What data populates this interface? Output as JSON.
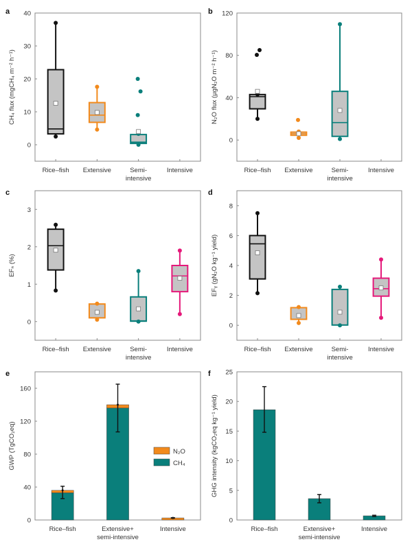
{
  "colors": {
    "rice_fish": "#111111",
    "extensive": "#f28a1c",
    "semi_intensive": "#0a7f7b",
    "intensive": "#e5197a",
    "box_fill": "#c4c4c4",
    "n2o": "#f28a1c",
    "ch4": "#0a7f7b"
  },
  "chart_data": [
    {
      "id": "a",
      "panel_label": "a",
      "type": "box",
      "ylabel": "CH₄ flux (mgCH₄ m⁻² h⁻¹)",
      "ylim": [
        -5,
        40
      ],
      "yticks": [
        0,
        10,
        20,
        30,
        40
      ],
      "categories": [
        "Rice–fish",
        "Extensive",
        "Semi-\nintensive",
        "Intensive"
      ],
      "groups": [
        {
          "name": "Rice–fish",
          "color_key": "rice_fish",
          "min": 2.5,
          "q1": 3.3,
          "median": 4.8,
          "q3": 22.8,
          "max": 37,
          "mean": 12.6,
          "outliers": []
        },
        {
          "name": "Extensive",
          "color_key": "extensive",
          "min": 4.6,
          "q1": 6.8,
          "median": 9.0,
          "q3": 12.8,
          "max": 17.6,
          "mean": 9.8,
          "outliers": []
        },
        {
          "name": "Semi-intensive",
          "color_key": "semi_intensive",
          "min": 0.0,
          "q1": 0.4,
          "median": 0.8,
          "q3": 3.1,
          "max": 3.3,
          "mean": 4.0,
          "outliers": [
            9.0,
            16.2,
            20.0
          ]
        },
        {
          "name": "Intensive",
          "color_key": "intensive",
          "empty": true
        }
      ]
    },
    {
      "id": "b",
      "panel_label": "b",
      "type": "box",
      "ylabel": "N₂O flux (µgN₂O m⁻² h⁻¹)",
      "ylim": [
        -20,
        120
      ],
      "yticks": [
        0,
        40,
        80,
        120
      ],
      "categories": [
        "Rice–fish",
        "Extensive",
        "Semi-\nintensive",
        "Intensive"
      ],
      "groups": [
        {
          "name": "Rice–fish",
          "color_key": "rice_fish",
          "min": 20,
          "q1": 29.5,
          "median": 41,
          "q3": 43,
          "max": 43,
          "mean": 46,
          "outliers": [
            80.5,
            85
          ]
        },
        {
          "name": "Extensive",
          "color_key": "extensive",
          "min": 2,
          "q1": 4.5,
          "median": 6,
          "q3": 7.5,
          "max": 8,
          "mean": 6,
          "outliers": [
            19
          ]
        },
        {
          "name": "Semi-intensive",
          "color_key": "semi_intensive",
          "min": 1,
          "q1": 3.5,
          "median": 16.5,
          "q3": 46,
          "max": 109.5,
          "mean": 28,
          "outliers": []
        },
        {
          "name": "Intensive",
          "color_key": "intensive",
          "empty": true
        }
      ]
    },
    {
      "id": "c",
      "panel_label": "c",
      "type": "box",
      "ylabel": "EFₙ (%)",
      "ylim": [
        -0.5,
        3.5
      ],
      "yticks": [
        0,
        1,
        2,
        3
      ],
      "categories": [
        "Rice–fish",
        "Extensive",
        "Semi-\nintensive",
        "Intensive"
      ],
      "groups": [
        {
          "name": "Rice–fish",
          "color_key": "rice_fish",
          "min": 0.83,
          "q1": 1.38,
          "median": 2.03,
          "q3": 2.47,
          "max": 2.59,
          "mean": 1.91,
          "outliers": []
        },
        {
          "name": "Extensive",
          "color_key": "extensive",
          "min": 0.05,
          "q1": 0.1,
          "median": 0.1,
          "q3": 0.47,
          "max": 0.48,
          "mean": 0.25,
          "outliers": []
        },
        {
          "name": "Semi-intensive",
          "color_key": "semi_intensive",
          "min": 0.0,
          "q1": 0.01,
          "median": 0.02,
          "q3": 0.66,
          "max": 1.35,
          "mean": 0.34,
          "outliers": []
        },
        {
          "name": "Intensive",
          "color_key": "intensive",
          "min": 0.2,
          "q1": 0.8,
          "median": 1.22,
          "q3": 1.5,
          "max": 1.9,
          "mean": 1.16,
          "outliers": []
        }
      ]
    },
    {
      "id": "d",
      "panel_label": "d",
      "type": "box",
      "ylabel": "EFᵧ (gN₂O kg⁻¹ yield)",
      "ylim": [
        -1,
        9
      ],
      "yticks": [
        0,
        2,
        4,
        6,
        8
      ],
      "categories": [
        "Rice–fish",
        "Extensive",
        "Semi-\nintensive",
        "Intensive"
      ],
      "groups": [
        {
          "name": "Rice–fish",
          "color_key": "rice_fish",
          "min": 2.15,
          "q1": 3.1,
          "median": 5.45,
          "q3": 6.0,
          "max": 7.5,
          "mean": 4.85,
          "outliers": []
        },
        {
          "name": "Extensive",
          "color_key": "extensive",
          "min": 0.15,
          "q1": 0.4,
          "median": 0.4,
          "q3": 1.18,
          "max": 1.22,
          "mean": 0.65,
          "outliers": []
        },
        {
          "name": "Semi-intensive",
          "color_key": "semi_intensive",
          "min": 0.0,
          "q1": 0.02,
          "median": 0.02,
          "q3": 2.4,
          "max": 2.58,
          "mean": 0.88,
          "outliers": []
        },
        {
          "name": "Intensive",
          "color_key": "intensive",
          "min": 0.5,
          "q1": 1.95,
          "median": 2.45,
          "q3": 3.15,
          "max": 4.4,
          "mean": 2.5,
          "outliers": []
        }
      ]
    },
    {
      "id": "e",
      "panel_label": "e",
      "type": "stacked_bar",
      "ylabel": "GWP (TgCO₂eq)",
      "ylim": [
        0,
        180
      ],
      "yticks": [
        0,
        40,
        80,
        120,
        160
      ],
      "categories": [
        "Rice–fish",
        "Extensive+\nsemi-intensive",
        "Intensive"
      ],
      "series": [
        {
          "name": "CH₄",
          "color_key": "ch4",
          "values": [
            33,
            136,
            0
          ]
        },
        {
          "name": "N₂O",
          "color_key": "n2o",
          "values": [
            3,
            4,
            2.5
          ]
        }
      ],
      "error_bars": [
        {
          "center": 36,
          "low": 26,
          "high": 41
        },
        {
          "center": 140,
          "low": 107,
          "high": 165
        },
        {
          "center": 2.5,
          "low": 2.2,
          "high": 2.8
        }
      ],
      "legend": {
        "position": "right-middle",
        "entries": [
          "N₂O",
          "CH₄"
        ]
      }
    },
    {
      "id": "f",
      "panel_label": "f",
      "type": "bar",
      "ylabel": "GHG intensity (kgCO₂eq kg⁻¹ yield)",
      "ylim": [
        0,
        25
      ],
      "yticks": [
        0,
        5,
        10,
        15,
        20,
        25
      ],
      "categories": [
        "Rice–fish",
        "Extensive+\nsemi-intensive",
        "Intensive"
      ],
      "values": [
        18.6,
        3.6,
        0.7
      ],
      "color_key": "ch4",
      "error_bars": [
        {
          "low": 14.8,
          "high": 22.5
        },
        {
          "low": 2.9,
          "high": 4.3
        },
        {
          "low": 0.6,
          "high": 0.8
        }
      ]
    }
  ]
}
